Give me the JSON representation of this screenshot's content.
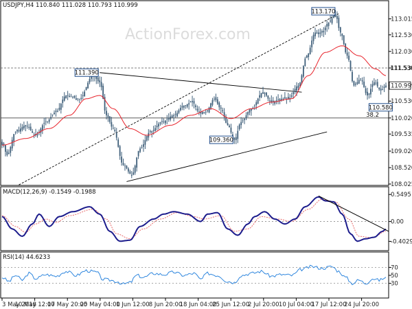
{
  "chart_data": [
    {
      "type": "candlestick",
      "symbol_line": "USDJPY,H4  110.840 111.028 110.793 110.999",
      "watermark": "ActionForex.com",
      "ylim": [
        108.025,
        113.5
      ],
      "yticks": [
        "113.015",
        "112.530",
        "112.030",
        "111.530",
        "110.999",
        "110.530",
        "110.020",
        "109.535",
        "109.020",
        "108.520",
        "108.025"
      ],
      "last_price": 110.999,
      "level_lines": [
        {
          "label": "111.530",
          "value": 111.53
        },
        {
          "label": "38.2",
          "value": 110.02
        }
      ],
      "annotations": [
        {
          "text": "111.390",
          "value": 111.39
        },
        {
          "text": "113.170",
          "value": 113.17
        },
        {
          "text": "109.360",
          "value": 109.36
        },
        {
          "text": "110.580",
          "value": 110.58
        }
      ],
      "series_close_anchors": [
        {
          "i": 0,
          "v": 109.3
        },
        {
          "i": 3,
          "v": 108.9
        },
        {
          "i": 8,
          "v": 109.6
        },
        {
          "i": 14,
          "v": 109.8
        },
        {
          "i": 20,
          "v": 109.5
        },
        {
          "i": 26,
          "v": 109.9
        },
        {
          "i": 32,
          "v": 110.2
        },
        {
          "i": 38,
          "v": 110.7
        },
        {
          "i": 46,
          "v": 110.6
        },
        {
          "i": 54,
          "v": 111.3
        },
        {
          "i": 58,
          "v": 111.1
        },
        {
          "i": 62,
          "v": 110.1
        },
        {
          "i": 66,
          "v": 109.7
        },
        {
          "i": 72,
          "v": 108.6
        },
        {
          "i": 77,
          "v": 108.3
        },
        {
          "i": 82,
          "v": 109.1
        },
        {
          "i": 88,
          "v": 109.6
        },
        {
          "i": 95,
          "v": 109.9
        },
        {
          "i": 102,
          "v": 110.1
        },
        {
          "i": 108,
          "v": 110.4
        },
        {
          "i": 113,
          "v": 110.5
        },
        {
          "i": 117,
          "v": 110.2
        },
        {
          "i": 121,
          "v": 110.2
        },
        {
          "i": 126,
          "v": 110.6
        },
        {
          "i": 130,
          "v": 110.3
        },
        {
          "i": 134,
          "v": 109.8
        },
        {
          "i": 138,
          "v": 109.36
        },
        {
          "i": 142,
          "v": 109.9
        },
        {
          "i": 148,
          "v": 110.3
        },
        {
          "i": 155,
          "v": 110.8
        },
        {
          "i": 160,
          "v": 110.5
        },
        {
          "i": 166,
          "v": 110.6
        },
        {
          "i": 170,
          "v": 110.6
        },
        {
          "i": 176,
          "v": 111.0
        },
        {
          "i": 181,
          "v": 111.9
        },
        {
          "i": 186,
          "v": 112.6
        },
        {
          "i": 190,
          "v": 112.6
        },
        {
          "i": 194,
          "v": 112.9
        },
        {
          "i": 198,
          "v": 113.15
        },
        {
          "i": 201,
          "v": 112.6
        },
        {
          "i": 205,
          "v": 111.9
        },
        {
          "i": 209,
          "v": 111.0
        },
        {
          "i": 213,
          "v": 111.2
        },
        {
          "i": 217,
          "v": 110.7
        },
        {
          "i": 221,
          "v": 111.1
        },
        {
          "i": 225,
          "v": 110.85
        },
        {
          "i": 228,
          "v": 110.999
        }
      ],
      "moving_average_anchors": [
        {
          "i": 0,
          "v": 109.2
        },
        {
          "i": 14,
          "v": 109.4
        },
        {
          "i": 28,
          "v": 109.7
        },
        {
          "i": 40,
          "v": 110.1
        },
        {
          "i": 50,
          "v": 110.6
        },
        {
          "i": 58,
          "v": 110.7
        },
        {
          "i": 66,
          "v": 110.3
        },
        {
          "i": 76,
          "v": 109.7
        },
        {
          "i": 86,
          "v": 109.5
        },
        {
          "i": 100,
          "v": 109.8
        },
        {
          "i": 112,
          "v": 110.1
        },
        {
          "i": 124,
          "v": 110.3
        },
        {
          "i": 136,
          "v": 110.0
        },
        {
          "i": 148,
          "v": 110.3
        },
        {
          "i": 160,
          "v": 110.5
        },
        {
          "i": 172,
          "v": 110.6
        },
        {
          "i": 182,
          "v": 111.3
        },
        {
          "i": 192,
          "v": 112.0
        },
        {
          "i": 202,
          "v": 112.2
        },
        {
          "i": 212,
          "v": 111.9
        },
        {
          "i": 222,
          "v": 111.5
        },
        {
          "i": 228,
          "v": 111.3
        }
      ]
    },
    {
      "type": "line",
      "title": "MACD(12,26,9) -0.1549 -0.1988",
      "ylim": [
        -0.55,
        0.65
      ],
      "yticks": [
        "0.5495",
        "0.00",
        "-0.4029"
      ],
      "series": [
        {
          "name": "MACD",
          "anchors": [
            {
              "i": 0,
              "v": 0.1
            },
            {
              "i": 6,
              "v": -0.15
            },
            {
              "i": 12,
              "v": -0.3
            },
            {
              "i": 18,
              "v": -0.05
            },
            {
              "i": 22,
              "v": 0.15
            },
            {
              "i": 28,
              "v": -0.1
            },
            {
              "i": 34,
              "v": 0.1
            },
            {
              "i": 42,
              "v": 0.2
            },
            {
              "i": 52,
              "v": 0.3
            },
            {
              "i": 58,
              "v": 0.15
            },
            {
              "i": 64,
              "v": -0.2
            },
            {
              "i": 70,
              "v": -0.4
            },
            {
              "i": 76,
              "v": -0.38
            },
            {
              "i": 82,
              "v": -0.1
            },
            {
              "i": 90,
              "v": 0.05
            },
            {
              "i": 96,
              "v": 0.15
            },
            {
              "i": 102,
              "v": 0.2
            },
            {
              "i": 110,
              "v": 0.15
            },
            {
              "i": 118,
              "v": 0.0
            },
            {
              "i": 122,
              "v": 0.15
            },
            {
              "i": 128,
              "v": 0.18
            },
            {
              "i": 134,
              "v": -0.15
            },
            {
              "i": 140,
              "v": -0.28
            },
            {
              "i": 146,
              "v": -0.05
            },
            {
              "i": 150,
              "v": 0.1
            },
            {
              "i": 156,
              "v": 0.2
            },
            {
              "i": 162,
              "v": 0.05
            },
            {
              "i": 168,
              "v": -0.05
            },
            {
              "i": 174,
              "v": 0.05
            },
            {
              "i": 180,
              "v": 0.3
            },
            {
              "i": 188,
              "v": 0.5
            },
            {
              "i": 192,
              "v": 0.42
            },
            {
              "i": 197,
              "v": 0.4
            },
            {
              "i": 202,
              "v": 0.15
            },
            {
              "i": 207,
              "v": -0.25
            },
            {
              "i": 211,
              "v": -0.4
            },
            {
              "i": 216,
              "v": -0.35
            },
            {
              "i": 221,
              "v": -0.32
            },
            {
              "i": 226,
              "v": -0.2
            },
            {
              "i": 228,
              "v": -0.1549
            }
          ]
        },
        {
          "name": "Signal",
          "anchors": [
            {
              "i": 0,
              "v": 0.12
            },
            {
              "i": 8,
              "v": -0.1
            },
            {
              "i": 14,
              "v": -0.22
            },
            {
              "i": 20,
              "v": -0.05
            },
            {
              "i": 26,
              "v": 0.05
            },
            {
              "i": 32,
              "v": -0.02
            },
            {
              "i": 40,
              "v": 0.12
            },
            {
              "i": 54,
              "v": 0.25
            },
            {
              "i": 62,
              "v": 0.05
            },
            {
              "i": 68,
              "v": -0.25
            },
            {
              "i": 76,
              "v": -0.35
            },
            {
              "i": 84,
              "v": -0.15
            },
            {
              "i": 94,
              "v": 0.05
            },
            {
              "i": 104,
              "v": 0.18
            },
            {
              "i": 114,
              "v": 0.1
            },
            {
              "i": 120,
              "v": 0.05
            },
            {
              "i": 130,
              "v": 0.12
            },
            {
              "i": 138,
              "v": -0.2
            },
            {
              "i": 146,
              "v": -0.15
            },
            {
              "i": 154,
              "v": 0.1
            },
            {
              "i": 164,
              "v": 0.05
            },
            {
              "i": 172,
              "v": 0.0
            },
            {
              "i": 182,
              "v": 0.25
            },
            {
              "i": 190,
              "v": 0.45
            },
            {
              "i": 198,
              "v": 0.4
            },
            {
              "i": 206,
              "v": 0.05
            },
            {
              "i": 212,
              "v": -0.3
            },
            {
              "i": 220,
              "v": -0.33
            },
            {
              "i": 228,
              "v": -0.1988
            }
          ]
        }
      ],
      "trendline_start": {
        "i": 188,
        "v": 0.52
      },
      "trendline_end": {
        "i": 235,
        "v": -0.2
      }
    },
    {
      "type": "line",
      "title": "RSI(14) 44.6233",
      "ylim": [
        0,
        100
      ],
      "yticks": [
        "70",
        "50",
        "30"
      ],
      "series": [
        {
          "name": "RSI",
          "anchors": [
            {
              "i": 0,
              "v": 45
            },
            {
              "i": 4,
              "v": 35
            },
            {
              "i": 8,
              "v": 50
            },
            {
              "i": 12,
              "v": 38
            },
            {
              "i": 16,
              "v": 55
            },
            {
              "i": 20,
              "v": 42
            },
            {
              "i": 26,
              "v": 52
            },
            {
              "i": 32,
              "v": 48
            },
            {
              "i": 38,
              "v": 60
            },
            {
              "i": 44,
              "v": 50
            },
            {
              "i": 50,
              "v": 62
            },
            {
              "i": 56,
              "v": 58
            },
            {
              "i": 60,
              "v": 40
            },
            {
              "i": 64,
              "v": 38
            },
            {
              "i": 68,
              "v": 35
            },
            {
              "i": 72,
              "v": 28
            },
            {
              "i": 76,
              "v": 32
            },
            {
              "i": 80,
              "v": 50
            },
            {
              "i": 84,
              "v": 45
            },
            {
              "i": 90,
              "v": 55
            },
            {
              "i": 96,
              "v": 52
            },
            {
              "i": 102,
              "v": 58
            },
            {
              "i": 108,
              "v": 50
            },
            {
              "i": 114,
              "v": 55
            },
            {
              "i": 118,
              "v": 40
            },
            {
              "i": 122,
              "v": 55
            },
            {
              "i": 128,
              "v": 50
            },
            {
              "i": 134,
              "v": 35
            },
            {
              "i": 138,
              "v": 32
            },
            {
              "i": 142,
              "v": 50
            },
            {
              "i": 148,
              "v": 55
            },
            {
              "i": 154,
              "v": 60
            },
            {
              "i": 160,
              "v": 48
            },
            {
              "i": 166,
              "v": 52
            },
            {
              "i": 172,
              "v": 50
            },
            {
              "i": 178,
              "v": 65
            },
            {
              "i": 184,
              "v": 72
            },
            {
              "i": 190,
              "v": 68
            },
            {
              "i": 196,
              "v": 72
            },
            {
              "i": 200,
              "v": 60
            },
            {
              "i": 204,
              "v": 45
            },
            {
              "i": 208,
              "v": 30
            },
            {
              "i": 212,
              "v": 38
            },
            {
              "i": 216,
              "v": 30
            },
            {
              "i": 220,
              "v": 42
            },
            {
              "i": 224,
              "v": 38
            },
            {
              "i": 228,
              "v": 44.6233
            }
          ]
        }
      ]
    }
  ],
  "x_axis_labels": [
    "3 May 2018",
    "10 May 12:00",
    "17 May 20:00",
    "25 May 04:00",
    "1 Jun 12:00",
    "8 Jun 20:00",
    "18 Jun 04:00",
    "25 Jun 12:00",
    "2 Jul 20:00",
    "10 Jul 04:00",
    "17 Jul 12:00",
    "24 Jul 20:00"
  ],
  "colors": {
    "candle": "#3f5f7a",
    "moving_average": "#e8222a",
    "macd": "#1c1c8c",
    "macd_signal": "#e86a6a",
    "rsi": "#2e86de",
    "trendline": "#000000"
  }
}
